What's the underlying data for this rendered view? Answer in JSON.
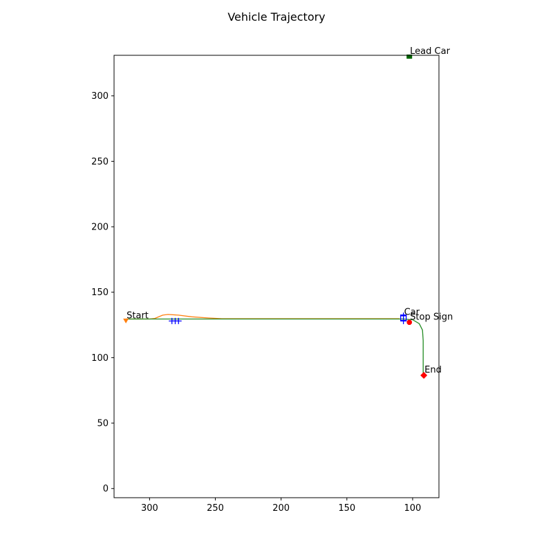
{
  "chart_data": {
    "type": "line",
    "title": "Vehicle Trajectory",
    "xlabel": "",
    "ylabel": "",
    "xlim": [
      327,
      80
    ],
    "ylim": [
      -7,
      331
    ],
    "x_reversed": true,
    "grid": false,
    "xticks": [
      300,
      250,
      200,
      150,
      100
    ],
    "yticks": [
      0,
      50,
      100,
      150,
      200,
      250,
      300
    ],
    "series": [
      {
        "color": "#ff7f0e",
        "points": [
          [
            318,
            129.5
          ],
          [
            300,
            129.5
          ],
          [
            296,
            130
          ],
          [
            290,
            132.5
          ],
          [
            286,
            133
          ],
          [
            278,
            132.5
          ],
          [
            268,
            131.2
          ],
          [
            255,
            130.3
          ],
          [
            245,
            129.8
          ],
          [
            110,
            129.8
          ]
        ]
      },
      {
        "color": "#228b22",
        "points": [
          [
            318,
            129.5
          ],
          [
            300,
            129.5
          ],
          [
            108,
            129.5
          ],
          [
            100,
            129
          ],
          [
            95,
            126
          ],
          [
            92.5,
            121
          ],
          [
            92,
            113
          ],
          [
            92,
            87
          ]
        ]
      }
    ],
    "markers": [
      {
        "label": "Start",
        "shape": "triangle-down",
        "color": "#ff7f0e",
        "x": 318,
        "y": 128
      },
      {
        "label": "Lead Car",
        "shape": "square",
        "color": "#006400",
        "x": 102.5,
        "y": 330
      },
      {
        "label": "Car",
        "shape": "square-outline",
        "color": "#0000ff",
        "x": 107,
        "y": 130.5
      },
      {
        "label": "Stop Sign",
        "shape": "octagon",
        "color": "#ff0000",
        "x": 102.5,
        "y": 127
      },
      {
        "label": "End",
        "shape": "diamond",
        "color": "#ff0000",
        "x": 91.5,
        "y": 86.5
      }
    ],
    "waypoints": {
      "shape": "plus",
      "color": "#0000ff",
      "points": [
        [
          283,
          128
        ],
        [
          280.5,
          128
        ],
        [
          278,
          128
        ],
        [
          107,
          128
        ],
        [
          107,
          132
        ]
      ]
    }
  }
}
